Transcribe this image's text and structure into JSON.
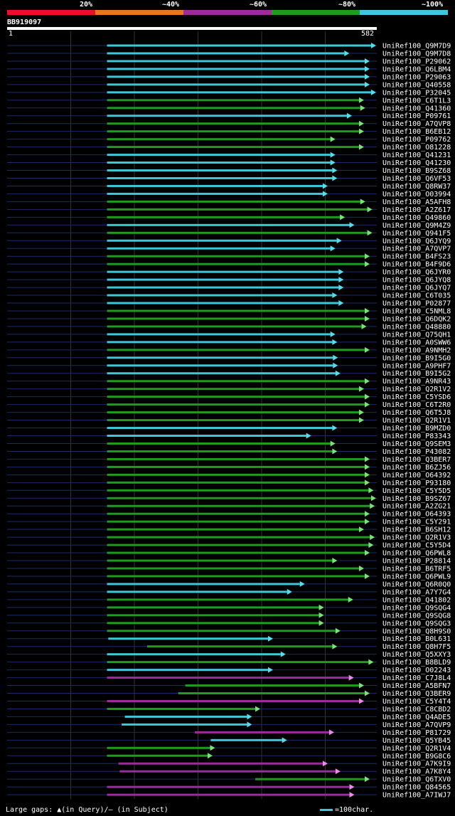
{
  "legend": {
    "labels": [
      "20%",
      "~40%",
      "~60%",
      "~80%",
      "~100%"
    ],
    "colors": [
      "#e8102c",
      "#e8781a",
      "#9c2b9c",
      "#1e9c1e",
      "#3cc8d8"
    ]
  },
  "query": {
    "name": "BB919097",
    "start": "1",
    "end": "582",
    "length": 582
  },
  "footer": {
    "gaps": "Large gaps: ▲(in Query)/– (in Subject)",
    "scale": "=100char."
  },
  "chart_data": {
    "type": "alignment",
    "xlim": [
      1,
      582
    ],
    "hits": [
      {
        "name": "UniRef100_Q9M7D9",
        "start": 158,
        "end": 573,
        "color": "cyan"
      },
      {
        "name": "UniRef100_Q9M7D8",
        "start": 158,
        "end": 531,
        "color": "cyan"
      },
      {
        "name": "UniRef100_P29062",
        "start": 158,
        "end": 563,
        "color": "cyan"
      },
      {
        "name": "UniRef100_Q6LBM4",
        "start": 158,
        "end": 563,
        "color": "cyan"
      },
      {
        "name": "UniRef100_P29063",
        "start": 158,
        "end": 563,
        "color": "cyan"
      },
      {
        "name": "UniRef100_Q40558",
        "start": 158,
        "end": 563,
        "color": "cyan"
      },
      {
        "name": "UniRef100_P32045",
        "start": 158,
        "end": 573,
        "color": "cyan"
      },
      {
        "name": "UniRef100_C6T1L3",
        "start": 158,
        "end": 554,
        "color": "green"
      },
      {
        "name": "UniRef100_Q41360",
        "start": 158,
        "end": 556,
        "color": "green"
      },
      {
        "name": "UniRef100_P09761",
        "start": 158,
        "end": 535,
        "color": "cyan"
      },
      {
        "name": "UniRef100_A7QVP8",
        "start": 158,
        "end": 554,
        "color": "green"
      },
      {
        "name": "UniRef100_B6EB12",
        "start": 158,
        "end": 554,
        "color": "green"
      },
      {
        "name": "UniRef100_P09762",
        "start": 158,
        "end": 509,
        "color": "green"
      },
      {
        "name": "UniRef100_O81228",
        "start": 158,
        "end": 554,
        "color": "green"
      },
      {
        "name": "UniRef100_Q41231",
        "start": 158,
        "end": 509,
        "color": "cyan"
      },
      {
        "name": "UniRef100_Q41230",
        "start": 158,
        "end": 509,
        "color": "cyan"
      },
      {
        "name": "UniRef100_B9SZ68",
        "start": 158,
        "end": 512,
        "color": "cyan"
      },
      {
        "name": "UniRef100_Q6VF53",
        "start": 158,
        "end": 512,
        "color": "cyan"
      },
      {
        "name": "UniRef100_Q8RW37",
        "start": 158,
        "end": 497,
        "color": "cyan"
      },
      {
        "name": "UniRef100_O03994",
        "start": 158,
        "end": 497,
        "color": "cyan"
      },
      {
        "name": "UniRef100_A5AFH8",
        "start": 158,
        "end": 556,
        "color": "green"
      },
      {
        "name": "UniRef100_A2Z617",
        "start": 158,
        "end": 567,
        "color": "green"
      },
      {
        "name": "UniRef100_Q49860",
        "start": 158,
        "end": 524,
        "color": "green"
      },
      {
        "name": "UniRef100_Q9M4Z9",
        "start": 158,
        "end": 539,
        "color": "cyan"
      },
      {
        "name": "UniRef100_Q941F5",
        "start": 158,
        "end": 567,
        "color": "green"
      },
      {
        "name": "UniRef100_Q6JYQ9",
        "start": 158,
        "end": 519,
        "color": "cyan"
      },
      {
        "name": "UniRef100_A7QVP7",
        "start": 158,
        "end": 509,
        "color": "cyan"
      },
      {
        "name": "UniRef100_B4FS23",
        "start": 158,
        "end": 563,
        "color": "green"
      },
      {
        "name": "UniRef100_B4F9D6",
        "start": 158,
        "end": 563,
        "color": "green"
      },
      {
        "name": "UniRef100_Q6JYR0",
        "start": 158,
        "end": 522,
        "color": "cyan"
      },
      {
        "name": "UniRef100_Q6JYQ8",
        "start": 158,
        "end": 522,
        "color": "cyan"
      },
      {
        "name": "UniRef100_Q6JYQ7",
        "start": 158,
        "end": 522,
        "color": "cyan"
      },
      {
        "name": "UniRef100_C6T035",
        "start": 158,
        "end": 512,
        "color": "cyan"
      },
      {
        "name": "UniRef100_P02877",
        "start": 158,
        "end": 522,
        "color": "cyan"
      },
      {
        "name": "UniRef100_C5NML8",
        "start": 158,
        "end": 563,
        "color": "green"
      },
      {
        "name": "UniRef100_Q6DQK2",
        "start": 158,
        "end": 563,
        "color": "green"
      },
      {
        "name": "UniRef100_Q48880",
        "start": 158,
        "end": 558,
        "color": "green"
      },
      {
        "name": "UniRef100_Q75QH1",
        "start": 158,
        "end": 509,
        "color": "cyan"
      },
      {
        "name": "UniRef100_A0SWW6",
        "start": 158,
        "end": 512,
        "color": "cyan"
      },
      {
        "name": "UniRef100_A9NMH2",
        "start": 158,
        "end": 563,
        "color": "green"
      },
      {
        "name": "UniRef100_B9I5G0",
        "start": 158,
        "end": 513,
        "color": "cyan"
      },
      {
        "name": "UniRef100_A9PHF7",
        "start": 158,
        "end": 513,
        "color": "cyan"
      },
      {
        "name": "UniRef100_B9I5G2",
        "start": 158,
        "end": 517,
        "color": "cyan"
      },
      {
        "name": "UniRef100_A9NR43",
        "start": 158,
        "end": 563,
        "color": "green"
      },
      {
        "name": "UniRef100_Q2R1V2",
        "start": 158,
        "end": 554,
        "color": "green"
      },
      {
        "name": "UniRef100_C5YSD6",
        "start": 158,
        "end": 563,
        "color": "green"
      },
      {
        "name": "UniRef100_C6T2R0",
        "start": 158,
        "end": 563,
        "color": "green"
      },
      {
        "name": "UniRef100_Q6T5J8",
        "start": 158,
        "end": 554,
        "color": "green"
      },
      {
        "name": "UniRef100_Q2R1V1",
        "start": 158,
        "end": 554,
        "color": "green"
      },
      {
        "name": "UniRef100_B9MZD0",
        "start": 158,
        "end": 512,
        "color": "cyan"
      },
      {
        "name": "UniRef100_P83343",
        "start": 158,
        "end": 471,
        "color": "cyan"
      },
      {
        "name": "UniRef100_Q9SEM3",
        "start": 158,
        "end": 509,
        "color": "green"
      },
      {
        "name": "UniRef100_P43082",
        "start": 158,
        "end": 512,
        "color": "green"
      },
      {
        "name": "UniRef100_Q3BER7",
        "start": 158,
        "end": 563,
        "color": "green"
      },
      {
        "name": "UniRef100_B6ZJ56",
        "start": 158,
        "end": 563,
        "color": "green"
      },
      {
        "name": "UniRef100_O64392",
        "start": 158,
        "end": 563,
        "color": "green"
      },
      {
        "name": "UniRef100_P93180",
        "start": 158,
        "end": 563,
        "color": "green"
      },
      {
        "name": "UniRef100_C5Y5D5",
        "start": 158,
        "end": 569,
        "color": "green"
      },
      {
        "name": "UniRef100_B9SZ67",
        "start": 158,
        "end": 573,
        "color": "green"
      },
      {
        "name": "UniRef100_A2ZG21",
        "start": 158,
        "end": 571,
        "color": "green"
      },
      {
        "name": "UniRef100_O64393",
        "start": 158,
        "end": 563,
        "color": "green"
      },
      {
        "name": "UniRef100_C5Y291",
        "start": 158,
        "end": 563,
        "color": "green"
      },
      {
        "name": "UniRef100_B6SH12",
        "start": 158,
        "end": 554,
        "color": "green"
      },
      {
        "name": "UniRef100_Q2R1V3",
        "start": 158,
        "end": 571,
        "color": "green"
      },
      {
        "name": "UniRef100_C5Y5D4",
        "start": 158,
        "end": 569,
        "color": "green"
      },
      {
        "name": "UniRef100_Q6PWL8",
        "start": 158,
        "end": 563,
        "color": "green"
      },
      {
        "name": "UniRef100_P28814",
        "start": 158,
        "end": 512,
        "color": "green"
      },
      {
        "name": "UniRef100_B6TRF5",
        "start": 158,
        "end": 554,
        "color": "green"
      },
      {
        "name": "UniRef100_Q6PWL9",
        "start": 158,
        "end": 563,
        "color": "green"
      },
      {
        "name": "UniRef100_Q6R0Q0",
        "start": 158,
        "end": 461,
        "color": "cyan"
      },
      {
        "name": "UniRef100_A7Y7G4",
        "start": 158,
        "end": 441,
        "color": "cyan"
      },
      {
        "name": "UniRef100_Q41802",
        "start": 158,
        "end": 537,
        "color": "green"
      },
      {
        "name": "UniRef100_Q9SQG4",
        "start": 158,
        "end": 491,
        "color": "green"
      },
      {
        "name": "UniRef100_Q9SQG8",
        "start": 158,
        "end": 491,
        "color": "green"
      },
      {
        "name": "UniRef100_Q9SQG3",
        "start": 158,
        "end": 491,
        "color": "green"
      },
      {
        "name": "UniRef100_Q8H9S0",
        "start": 158,
        "end": 517,
        "color": "green"
      },
      {
        "name": "UniRef100_B0L631",
        "start": 160,
        "end": 411,
        "color": "cyan"
      },
      {
        "name": "UniRef100_Q8H7F5",
        "start": 221,
        "end": 512,
        "color": "green"
      },
      {
        "name": "UniRef100_Q5XXY3",
        "start": 158,
        "end": 431,
        "color": "cyan"
      },
      {
        "name": "UniRef100_B8BLD9",
        "start": 158,
        "end": 569,
        "color": "green"
      },
      {
        "name": "UniRef100_O02243",
        "start": 158,
        "end": 411,
        "color": "cyan"
      },
      {
        "name": "UniRef100_C7J8L4",
        "start": 158,
        "end": 538,
        "color": "purple"
      },
      {
        "name": "UniRef100_A5BFN7",
        "start": 281,
        "end": 554,
        "color": "green"
      },
      {
        "name": "UniRef100_Q3BER9",
        "start": 270,
        "end": 563,
        "color": "green"
      },
      {
        "name": "UniRef100_C5Y4T4",
        "start": 158,
        "end": 554,
        "color": "purple"
      },
      {
        "name": "UniRef100_C8CBD2",
        "start": 158,
        "end": 391,
        "color": "green"
      },
      {
        "name": "UniRef100_Q4ADE5",
        "start": 186,
        "end": 378,
        "color": "cyan"
      },
      {
        "name": "UniRef100_A7QVP9",
        "start": 181,
        "end": 378,
        "color": "cyan"
      },
      {
        "name": "UniRef100_P81729",
        "start": 296,
        "end": 507,
        "color": "purple"
      },
      {
        "name": "UniRef100_Q5YB45",
        "start": 321,
        "end": 433,
        "color": "cyan"
      },
      {
        "name": "UniRef100_Q2R1V4",
        "start": 158,
        "end": 320,
        "color": "green"
      },
      {
        "name": "UniRef100_B9G8C6",
        "start": 158,
        "end": 316,
        "color": "green"
      },
      {
        "name": "UniRef100_A7K9I9",
        "start": 176,
        "end": 497,
        "color": "purple"
      },
      {
        "name": "UniRef100_A7K8Y4",
        "start": 178,
        "end": 517,
        "color": "purple"
      },
      {
        "name": "UniRef100_Q6TXV0",
        "start": 391,
        "end": 563,
        "color": "green"
      },
      {
        "name": "UniRef100_Q84565",
        "start": 158,
        "end": 539,
        "color": "purple"
      },
      {
        "name": "UniRef100_A7IWJ7",
        "start": 158,
        "end": 539,
        "color": "purple"
      }
    ]
  }
}
